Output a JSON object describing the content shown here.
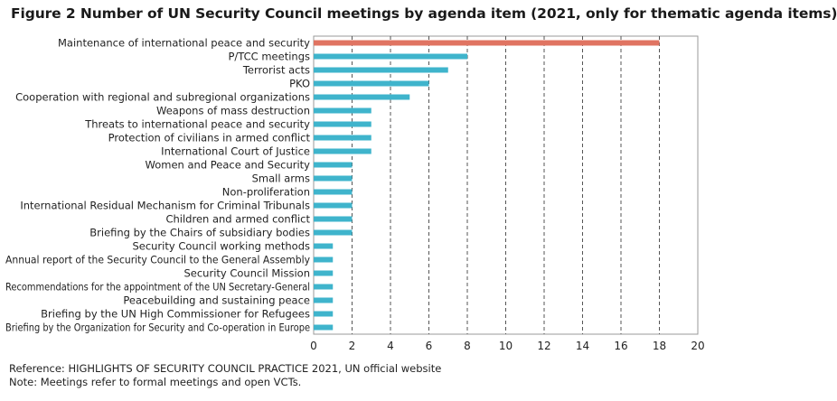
{
  "chart_data": {
    "type": "bar",
    "orientation": "horizontal",
    "title": "Figure 2 Number of UN Security Council meetings by agenda item (2021, only for thematic agenda items)",
    "categories": [
      "Maintenance of international peace and security",
      "P/TCC meetings",
      "Terrorist acts",
      "PKO",
      "Cooperation with regional and subregional organizations",
      "Weapons of mass destruction",
      "Threats to international peace and security",
      "Protection of civilians in armed conflict",
      "International Court of Justice",
      "Women and Peace and Security",
      "Small arms",
      "Non-proliferation",
      "International Residual Mechanism for Criminal Tribunals",
      "Children and armed conflict",
      "Briefing by the Chairs of subsidiary bodies",
      "Security Council working methods",
      "Annual report of the Security Council to the General Assembly",
      "Security Council Mission",
      "Recommendations for the appointment of the UN Secretary-General",
      "Peacebuilding and sustaining peace",
      "Briefing by the UN High Commissioner for Refugees",
      "Briefing by the Organization for Security and Co-operation in Europe"
    ],
    "values": [
      18,
      8,
      7,
      6,
      5,
      3,
      3,
      3,
      3,
      2,
      2,
      2,
      2,
      2,
      2,
      1,
      1,
      1,
      1,
      1,
      1,
      1
    ],
    "xlim": [
      0,
      20
    ],
    "xticks": [
      0,
      2,
      4,
      6,
      8,
      10,
      12,
      14,
      16,
      18,
      20
    ],
    "grid": "vertical dashed",
    "colors": {
      "bar": "#3fb4cc",
      "highlight": "#e07462",
      "grid": "#555555",
      "axis": "#999999"
    }
  },
  "notes": {
    "reference": "Reference: HIGHLIGHTS OF SECURITY COUNCIL PRACTICE 2021, UN official website",
    "note": "Note: Meetings refer to formal meetings and open VCTs."
  }
}
